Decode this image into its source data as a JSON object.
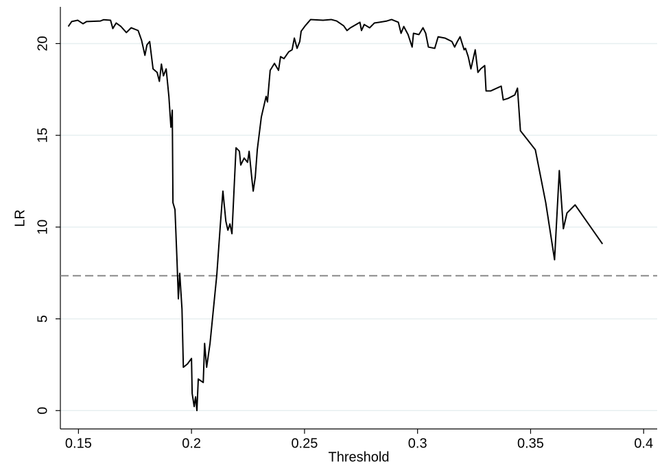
{
  "chart_data": {
    "type": "line",
    "xlabel": "Threshold",
    "ylabel": "LR",
    "xlim": [
      0.142,
      0.406
    ],
    "ylim": [
      -1,
      22
    ],
    "xticks": [
      0.15,
      0.2,
      0.25,
      0.3,
      0.35,
      0.4
    ],
    "yticks": [
      0,
      5,
      10,
      15,
      20
    ],
    "grid": true,
    "hline": 7.35,
    "hline_color": "#888888",
    "series": [
      {
        "color": "#000000",
        "x": [
          0.1455,
          0.147,
          0.1497,
          0.152,
          0.1536,
          0.1597,
          0.1612,
          0.1642,
          0.1652,
          0.1667,
          0.1688,
          0.1712,
          0.1733,
          0.1764,
          0.1779,
          0.1794,
          0.1803,
          0.1815,
          0.183,
          0.1848,
          0.1858,
          0.1867,
          0.1876,
          0.1888,
          0.19,
          0.1909,
          0.1915,
          0.1918,
          0.1927,
          0.1936,
          0.1942,
          0.1948,
          0.1958,
          0.1964,
          0.1982,
          0.2,
          0.2003,
          0.2012,
          0.2018,
          0.2024,
          0.203,
          0.2052,
          0.2058,
          0.2067,
          0.2082,
          0.2097,
          0.2112,
          0.2127,
          0.2139,
          0.2152,
          0.2161,
          0.217,
          0.2179,
          0.2197,
          0.2212,
          0.2218,
          0.2233,
          0.2248,
          0.2255,
          0.2267,
          0.2273,
          0.2282,
          0.2291,
          0.2309,
          0.233,
          0.2336,
          0.2348,
          0.2367,
          0.2385,
          0.2394,
          0.2409,
          0.243,
          0.2445,
          0.2455,
          0.2467,
          0.2479,
          0.2485,
          0.2503,
          0.2527,
          0.2582,
          0.2618,
          0.2642,
          0.2673,
          0.2688,
          0.2703,
          0.2745,
          0.2752,
          0.2764,
          0.2788,
          0.2809,
          0.283,
          0.2864,
          0.2885,
          0.2915,
          0.2927,
          0.2939,
          0.2958,
          0.2976,
          0.2982,
          0.3006,
          0.3024,
          0.3036,
          0.3048,
          0.3076,
          0.3091,
          0.3121,
          0.3152,
          0.3164,
          0.3176,
          0.3188,
          0.3206,
          0.3212,
          0.3224,
          0.3236,
          0.3255,
          0.3267,
          0.3279,
          0.3297,
          0.3303,
          0.3324,
          0.337,
          0.3379,
          0.34,
          0.343,
          0.3442,
          0.3455,
          0.3521,
          0.3567,
          0.3606,
          0.3627,
          0.3645,
          0.3661,
          0.3697,
          0.3818
        ],
        "values": [
          20.93,
          21.2,
          21.27,
          21.08,
          21.2,
          21.23,
          21.3,
          21.27,
          20.82,
          21.12,
          20.93,
          20.6,
          20.86,
          20.71,
          20.19,
          19.36,
          19.93,
          20.11,
          18.62,
          18.43,
          17.94,
          18.88,
          18.24,
          18.62,
          17.12,
          15.44,
          16.37,
          11.33,
          10.95,
          8.15,
          6.09,
          7.48,
          5.53,
          2.36,
          2.54,
          2.84,
          0.93,
          0.22,
          0.75,
          0.0,
          1.72,
          1.53,
          3.66,
          2.36,
          3.66,
          5.53,
          7.4,
          10.02,
          11.96,
          10.32,
          9.83,
          10.17,
          9.64,
          14.32,
          14.13,
          13.38,
          13.76,
          13.53,
          14.13,
          12.64,
          11.96,
          12.71,
          14.21,
          16.0,
          17.12,
          16.82,
          18.54,
          18.92,
          18.54,
          19.29,
          19.18,
          19.55,
          19.66,
          20.3,
          19.74,
          20.11,
          20.67,
          20.97,
          21.31,
          21.27,
          21.31,
          21.23,
          20.97,
          20.71,
          20.86,
          21.16,
          20.71,
          21.04,
          20.86,
          21.12,
          21.16,
          21.23,
          21.31,
          21.16,
          20.56,
          20.93,
          20.49,
          19.81,
          20.56,
          20.49,
          20.86,
          20.56,
          19.81,
          19.74,
          20.37,
          20.3,
          20.11,
          19.81,
          20.11,
          20.37,
          19.66,
          19.74,
          19.29,
          18.62,
          19.66,
          18.43,
          18.62,
          18.8,
          17.42,
          17.42,
          17.68,
          16.93,
          17.01,
          17.2,
          17.57,
          15.25,
          14.21,
          11.33,
          8.22,
          13.08,
          9.91,
          10.77,
          11.21,
          9.08
        ]
      }
    ]
  }
}
